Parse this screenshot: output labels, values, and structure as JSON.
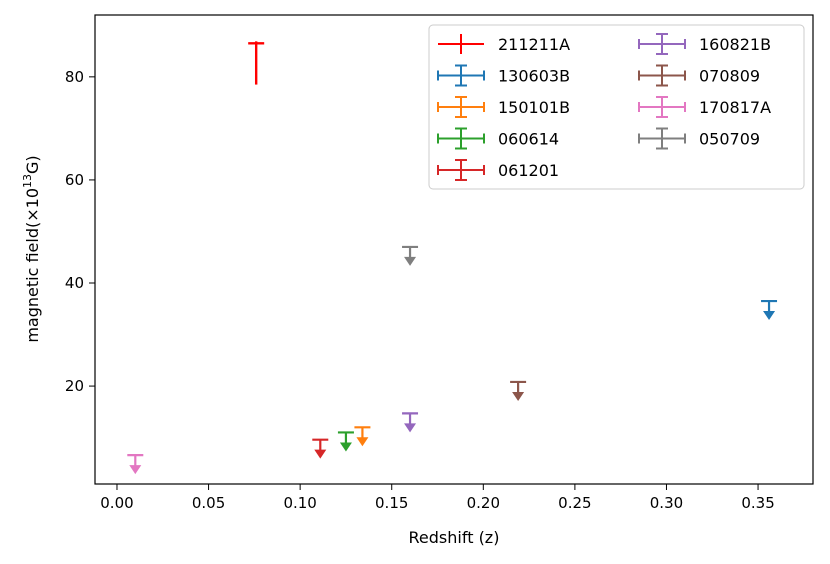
{
  "chart_data": {
    "type": "scatter",
    "title": "",
    "xlabel": "Redshift (z)",
    "ylabel_main": "magnetic field(×10",
    "ylabel_exp": "13",
    "ylabel_unit": "G)",
    "xlim": [
      -0.012,
      0.38
    ],
    "ylim": [
      1,
      92
    ],
    "x_ticks": [
      0.0,
      0.05,
      0.1,
      0.15,
      0.2,
      0.25,
      0.3,
      0.35
    ],
    "x_tick_labels": [
      "0.00",
      "0.05",
      "0.10",
      "0.15",
      "0.20",
      "0.25",
      "0.30",
      "0.35"
    ],
    "y_ticks": [
      20,
      40,
      60,
      80
    ],
    "y_tick_labels": [
      "20",
      "40",
      "60",
      "80"
    ],
    "legend_position": "top-right",
    "legend_columns": 2,
    "series": [
      {
        "name": "211211A",
        "color": "#ff0000",
        "x": 0.076,
        "y": 86.5,
        "lower": 78.5,
        "upper_limit": false
      },
      {
        "name": "130603B",
        "color": "#1f77b4",
        "x": 0.356,
        "y": 36.5,
        "upper_limit": true
      },
      {
        "name": "150101B",
        "color": "#ff7f0e",
        "x": 0.134,
        "y": 12.0,
        "upper_limit": true
      },
      {
        "name": "060614",
        "color": "#2ca02c",
        "x": 0.125,
        "y": 11.0,
        "upper_limit": true
      },
      {
        "name": "061201",
        "color": "#d62728",
        "x": 0.111,
        "y": 9.6,
        "upper_limit": true
      },
      {
        "name": "160821B",
        "color": "#9467bd",
        "x": 0.16,
        "y": 14.7,
        "upper_limit": true
      },
      {
        "name": "070809",
        "color": "#8c564b",
        "x": 0.219,
        "y": 20.8,
        "upper_limit": true
      },
      {
        "name": "170817A",
        "color": "#e377c2",
        "x": 0.01,
        "y": 6.6,
        "upper_limit": true
      },
      {
        "name": "050709",
        "color": "#7f7f7f",
        "x": 0.16,
        "y": 47.0,
        "upper_limit": true
      }
    ]
  }
}
